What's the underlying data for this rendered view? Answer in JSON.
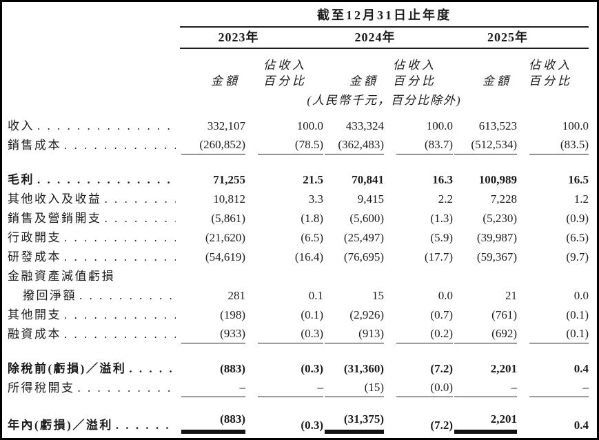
{
  "page": {
    "title": "截至12月31日止年度",
    "unit_note": "(人民幣千元，百分比除外)",
    "years": [
      {
        "label": "2023年"
      },
      {
        "label": "2024年"
      },
      {
        "label": "2025年"
      }
    ],
    "col_headers": {
      "amount": "金額",
      "pct_line1": "佔收入",
      "pct_line2": "百分比"
    }
  },
  "table": {
    "rows": [
      {
        "label": "收入",
        "leaders": true,
        "values": [
          "332,107",
          "100.0",
          "433,324",
          "100.0",
          "613,523",
          "100.0"
        ]
      },
      {
        "label": "銷售成本",
        "leaders": true,
        "underline": true,
        "values": [
          "(260,852)",
          "(78.5)",
          "(362,483)",
          "(83.7)",
          "(512,534)",
          "(83.5)"
        ]
      },
      {
        "type": "gap"
      },
      {
        "label": "毛利",
        "leaders": true,
        "bold": true,
        "values": [
          "71,255",
          "21.5",
          "70,841",
          "16.3",
          "100,989",
          "16.5"
        ]
      },
      {
        "label": "其他收入及收益",
        "leaders": true,
        "values": [
          "10,812",
          "3.3",
          "9,415",
          "2.2",
          "7,228",
          "1.2"
        ]
      },
      {
        "label": "銷售及營銷開支",
        "leaders": true,
        "values": [
          "(5,861)",
          "(1.8)",
          "(5,600)",
          "(1.3)",
          "(5,230)",
          "(0.9)"
        ]
      },
      {
        "label": "行政開支",
        "leaders": true,
        "values": [
          "(21,620)",
          "(6.5)",
          "(25,497)",
          "(5.9)",
          "(39,987)",
          "(6.5)"
        ]
      },
      {
        "label": "研發成本",
        "leaders": true,
        "values": [
          "(54,619)",
          "(16.4)",
          "(76,695)",
          "(17.7)",
          "(59,367)",
          "(9.7)"
        ]
      },
      {
        "label": "金融資產減值虧損",
        "leaders": false,
        "values": []
      },
      {
        "label": "撥回淨額",
        "indent": true,
        "leaders": true,
        "values": [
          "281",
          "0.1",
          "15",
          "0.0",
          "21",
          "0.0"
        ]
      },
      {
        "label": "其他開支",
        "leaders": true,
        "values": [
          "(198)",
          "(0.1)",
          "(2,926)",
          "(0.7)",
          "(761)",
          "(0.1)"
        ]
      },
      {
        "label": "融資成本",
        "leaders": true,
        "underline": true,
        "values": [
          "(933)",
          "(0.3)",
          "(913)",
          "(0.2)",
          "(692)",
          "(0.1)"
        ]
      },
      {
        "type": "gap"
      },
      {
        "label": "除稅前(虧損)／溢利",
        "leaders": true,
        "bold": true,
        "values": [
          "(883)",
          "(0.3)",
          "(31,360)",
          "(7.2)",
          "2,201",
          "0.4"
        ]
      },
      {
        "label": "所得稅開支",
        "leaders": true,
        "underline": true,
        "values": [
          "–",
          "–",
          "(15)",
          "(0.0)",
          "–",
          "–"
        ]
      },
      {
        "type": "gap"
      },
      {
        "label": "年內(虧損)／溢利",
        "leaders": true,
        "bold": true,
        "double_underline_amounts": true,
        "values": [
          "(883)",
          "(0.3)",
          "(31,375)",
          "(7.2)",
          "2,201",
          "0.4"
        ]
      }
    ]
  }
}
